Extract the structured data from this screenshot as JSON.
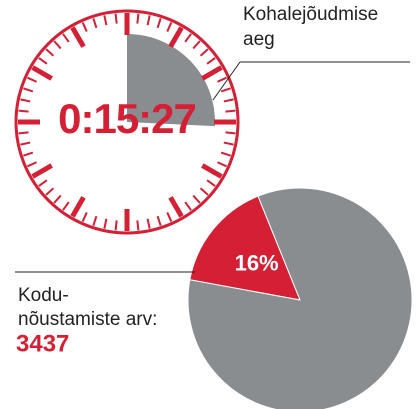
{
  "chart_data": [
    {
      "type": "clock",
      "label": "0:15:27",
      "value": 15.45,
      "max": 60,
      "annotation": [
        "Kohalejõudmise",
        "aeg"
      ],
      "color": "#8a8d90",
      "accent": "#d41f35"
    },
    {
      "type": "pie",
      "values": [
        16,
        84
      ],
      "value_labels": [
        "16%",
        null
      ],
      "colors": [
        "#d41f35",
        "#8a8d90"
      ],
      "annotation": [
        "Kodu-",
        "nõustamiste arv:"
      ],
      "total": 3437
    }
  ]
}
